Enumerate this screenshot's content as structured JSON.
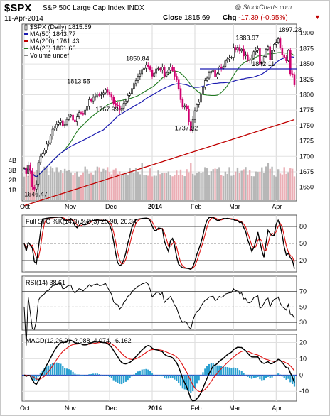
{
  "header": {
    "ticker": "$SPX",
    "name": "S&P 500 Large Cap Index  INDX",
    "brand": "@ StockCharts.com",
    "date": "11-Apr-2014",
    "close_label": "Close",
    "close_value": "1815.69",
    "chg_label": "Chg",
    "chg_value": "-17.39 (-0.95%)",
    "chg_arrow": "▼"
  },
  "colors": {
    "up": "#000000",
    "down": "#d0006f",
    "ma50": "#1a1ab0",
    "ma200": "#c00000",
    "ma20": "#1f7a1f",
    "volume_up": "#aaaaaa",
    "volume_down": "#e8a0a8",
    "macd_line": "#000000",
    "signal_line": "#e01010",
    "histogram": "#2aa0d0",
    "zero_line": "#1a1ab0"
  },
  "chart_data": [
    {
      "type": "candlestick",
      "title": "$SPX (Daily) 1815.69",
      "legend": [
        {
          "name": "$SPX (Daily)",
          "value": "1815.69",
          "marker": "candle"
        },
        {
          "name": "MA(50)",
          "value": "1843.77",
          "color": "#1a1ab0"
        },
        {
          "name": "MA(200)",
          "value": "1761.43",
          "color": "#c00000"
        },
        {
          "name": "MA(20)",
          "value": "1861.66",
          "color": "#1f7a1f"
        },
        {
          "name": "Volume undef",
          "value": "",
          "color": "#888888"
        }
      ],
      "y_ticks": [
        1650,
        1675,
        1700,
        1725,
        1750,
        1775,
        1800,
        1825,
        1850,
        1875,
        1900
      ],
      "ylim": [
        1630,
        1910
      ],
      "volume_ticks": [
        "1B",
        "2B",
        "3B",
        "4B"
      ],
      "x_ticks": [
        "Oct",
        "Nov",
        "Dec",
        "2014",
        "Feb",
        "Mar",
        "Apr"
      ],
      "x_tick_days": [
        0,
        22,
        42,
        63,
        84,
        103,
        124
      ],
      "annotations": [
        {
          "text": "1646.47",
          "day": 5,
          "value": 1646.47
        },
        {
          "text": "1813.55",
          "day": 26,
          "value": 1813.55
        },
        {
          "text": "1767.99",
          "day": 40,
          "value": 1767.99
        },
        {
          "text": "1850.84",
          "day": 55,
          "value": 1850.84
        },
        {
          "text": "1737.92",
          "day": 79,
          "value": 1737.92
        },
        {
          "text": "1842.11",
          "day": 117,
          "value": 1842.11
        },
        {
          "text": "1883.97",
          "day": 109,
          "value": 1883.97
        },
        {
          "text": "1897.28",
          "day": 130,
          "value": 1897.28
        }
      ],
      "close": [
        1681,
        1672,
        1686,
        1676,
        1650,
        1647,
        1655,
        1690,
        1700,
        1704,
        1710,
        1720,
        1722,
        1733,
        1744,
        1746,
        1752,
        1755,
        1758,
        1750,
        1752,
        1760,
        1765,
        1767,
        1759,
        1756,
        1764,
        1771,
        1770,
        1768,
        1775,
        1781,
        1792,
        1790,
        1796,
        1798,
        1801,
        1799,
        1800,
        1803,
        1808,
        1804,
        1800,
        1796,
        1786,
        1783,
        1782,
        1775,
        1778,
        1786,
        1790,
        1799,
        1802,
        1810,
        1818,
        1823,
        1830,
        1834,
        1841,
        1843,
        1848,
        1846,
        1840,
        1830,
        1835,
        1842,
        1843,
        1840,
        1845,
        1830,
        1836,
        1840,
        1845,
        1839,
        1830,
        1825,
        1810,
        1792,
        1780,
        1782,
        1777,
        1756,
        1742,
        1760,
        1774,
        1784,
        1788,
        1801,
        1812,
        1823,
        1827,
        1836,
        1838,
        1840,
        1829,
        1834,
        1845,
        1843,
        1846,
        1855,
        1858,
        1860,
        1861,
        1877,
        1873,
        1877,
        1871,
        1874,
        1863,
        1865,
        1857,
        1856,
        1860,
        1870,
        1872,
        1875,
        1850,
        1853,
        1862,
        1874,
        1878,
        1857,
        1872,
        1882,
        1885,
        1891,
        1876,
        1865,
        1861,
        1855,
        1872,
        1834,
        1833,
        1816
      ]
    },
    {
      "type": "line",
      "title": "Full STO %K(14,3) %D(3) 20.98, 26.34",
      "series": [
        {
          "name": "%K(14,3)",
          "value": "20.98"
        },
        {
          "name": "%D(3)",
          "value": "26.34"
        }
      ],
      "y_ticks": [
        20,
        50,
        80
      ],
      "ylim": [
        0,
        100
      ]
    },
    {
      "type": "line",
      "title": "RSI(14) 38.61",
      "series": [
        {
          "name": "RSI(14)",
          "value": "38.61"
        }
      ],
      "y_ticks": [
        30,
        50,
        70
      ],
      "ylim": [
        20,
        90
      ]
    },
    {
      "type": "line",
      "title": "MACD(12,26,9) -2.088, 4.074, -6.162",
      "series": [
        {
          "name": "MACD(12,26,9)",
          "value": "-2.088"
        },
        {
          "name": "Signal",
          "value": "4.074"
        },
        {
          "name": "Histogram",
          "value": "-6.162"
        }
      ],
      "y_ticks": [
        -10,
        0,
        10,
        20
      ],
      "ylim": [
        -16,
        25
      ]
    }
  ]
}
